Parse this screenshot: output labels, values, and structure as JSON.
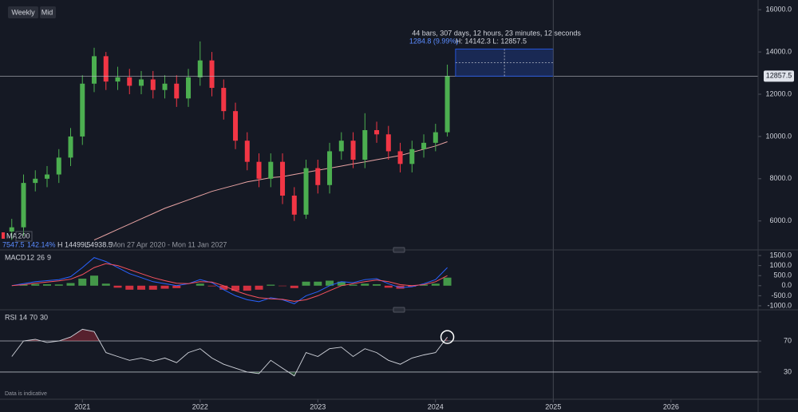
{
  "toolbar": {
    "interval": "Weekly",
    "price_source": "Mid"
  },
  "footer": "Data is indicative",
  "chart_data": [
    {
      "type": "candlestick",
      "xlim": [
        2020.3,
        2026.74
      ],
      "xticks": [
        2021,
        2022,
        2023,
        2024,
        2025,
        2026
      ],
      "ylim": [
        4630,
        16460
      ],
      "yticks": [
        {
          "value": 6000,
          "label": "6000.0"
        },
        {
          "value": 8000,
          "label": "8000.0"
        },
        {
          "value": 10000,
          "label": "10000.0"
        },
        {
          "value": 12000,
          "label": "12000.0"
        },
        {
          "value": 14000,
          "label": "14000.0"
        },
        {
          "value": 16000,
          "label": "16000.0"
        }
      ],
      "up_color": "#4caf50",
      "down_color": "#f23645",
      "x": [
        2020.4,
        2020.5,
        2020.6,
        2020.7,
        2020.8,
        2020.9,
        2021.0,
        2021.1,
        2021.2,
        2021.3,
        2021.4,
        2021.5,
        2021.6,
        2021.7,
        2021.8,
        2021.9,
        2022.0,
        2022.1,
        2022.2,
        2022.3,
        2022.4,
        2022.5,
        2022.6,
        2022.7,
        2022.8,
        2022.9,
        2023.0,
        2023.1,
        2023.2,
        2023.3,
        2023.4,
        2023.5,
        2023.6,
        2023.7,
        2023.8,
        2023.9,
        2024.0,
        2024.1
      ],
      "open": [
        5500,
        5700,
        7800,
        8000,
        8200,
        9000,
        10000,
        12500,
        13800,
        12600,
        12800,
        12400,
        12700,
        12200,
        12500,
        11800,
        12800,
        13600,
        12300,
        11200,
        9800,
        8800,
        8000,
        8800,
        7200,
        6300,
        8500,
        7700,
        9300,
        9800,
        8900,
        10300,
        10100,
        9300,
        8700,
        9400,
        9700,
        10200
      ],
      "high": [
        6100,
        8200,
        8400,
        8600,
        9400,
        10400,
        12900,
        14200,
        14000,
        13300,
        13200,
        13100,
        13100,
        12900,
        12900,
        13200,
        14500,
        14000,
        12700,
        11600,
        10200,
        9200,
        9200,
        9200,
        7600,
        8900,
        8900,
        9700,
        10200,
        10200,
        11100,
        10700,
        10500,
        9700,
        9800,
        10100,
        10600,
        13400
      ],
      "low": [
        5100,
        5300,
        7400,
        7600,
        7800,
        8600,
        9600,
        12100,
        12200,
        12200,
        12000,
        12000,
        11800,
        11800,
        11400,
        11400,
        12400,
        11900,
        10800,
        9400,
        8400,
        7600,
        7600,
        6800,
        6000,
        6100,
        7300,
        7300,
        8900,
        8500,
        8500,
        9700,
        8900,
        8300,
        8300,
        9000,
        9300,
        10000
      ],
      "close": [
        5700,
        7800,
        8000,
        8200,
        9000,
        10000,
        12500,
        13800,
        12600,
        12800,
        12400,
        12700,
        12200,
        12500,
        11800,
        12800,
        13600,
        12300,
        11200,
        9800,
        8800,
        8000,
        8800,
        7200,
        6300,
        8500,
        7700,
        9300,
        9800,
        8900,
        10300,
        10100,
        9300,
        8700,
        9400,
        9700,
        10200,
        12857.5
      ],
      "series": [
        {
          "name": "MA",
          "period": "200",
          "color": "#e8a3a3",
          "values": [
            null,
            null,
            null,
            null,
            null,
            null,
            null,
            5100,
            5350,
            5600,
            5850,
            6100,
            6350,
            6600,
            6800,
            7000,
            7200,
            7400,
            7550,
            7700,
            7850,
            7950,
            8050,
            8100,
            8200,
            8300,
            8400,
            8500,
            8600,
            8700,
            8800,
            8900,
            9000,
            9100,
            9250,
            9400,
            9550,
            9750
          ]
        }
      ],
      "legend_stats": [
        "7547.5",
        "142.14%",
        "H 14499.5",
        "L 4938.5",
        "Mon 27 Apr 2020 - Mon 11 Jan 2027"
      ],
      "last_price": 12857.5,
      "measure": {
        "x": [
          2024.17,
          2025.0
        ],
        "y": [
          12857.5,
          14142.3
        ],
        "summary": "44 bars, 307 days, 12 hours, 23 minutes, 12 seconds",
        "change": "1284.8 (9.99%)",
        "range": "H: 14142.3 L: 12857.5"
      }
    },
    {
      "type": "macd",
      "title": "MACD",
      "params": [
        "12",
        "26",
        "9"
      ],
      "ylim": [
        -1200,
        1700
      ],
      "yticks": [
        {
          "value": -1000,
          "label": "-1000.0"
        },
        {
          "value": -500,
          "label": "-500.0"
        },
        {
          "value": 0,
          "label": "0.0"
        },
        {
          "value": 500,
          "label": "500.0"
        },
        {
          "value": 1000,
          "label": "1000.0"
        },
        {
          "value": 1500,
          "label": "1500.0"
        }
      ],
      "up_color": "#4caf50",
      "down_color": "#f23645",
      "histogram": [
        0,
        50,
        80,
        70,
        60,
        130,
        350,
        500,
        100,
        -100,
        -200,
        -200,
        -200,
        -150,
        -120,
        0,
        100,
        -30,
        -200,
        -250,
        -250,
        -200,
        50,
        -20,
        -120,
        200,
        200,
        250,
        200,
        50,
        100,
        70,
        -100,
        -150,
        -50,
        50,
        100,
        400
      ],
      "series": [
        {
          "name": "MACD",
          "color": "#2962ff",
          "values": [
            0,
            100,
            200,
            250,
            300,
            450,
            900,
            1400,
            1200,
            900,
            600,
            400,
            200,
            100,
            0,
            100,
            300,
            150,
            -200,
            -500,
            -700,
            -800,
            -600,
            -700,
            -900,
            -500,
            -300,
            0,
            200,
            150,
            300,
            350,
            100,
            -100,
            -50,
            100,
            300,
            900
          ]
        },
        {
          "name": "Signal",
          "color": "#f7525f",
          "values": [
            0,
            50,
            120,
            180,
            240,
            320,
            550,
            900,
            1100,
            1000,
            800,
            600,
            400,
            250,
            120,
            100,
            200,
            180,
            0,
            -250,
            -450,
            -600,
            -650,
            -680,
            -780,
            -700,
            -500,
            -250,
            0,
            100,
            200,
            280,
            200,
            50,
            0,
            50,
            200,
            500
          ]
        }
      ]
    },
    {
      "type": "rsi",
      "title": "RSI",
      "params": [
        "14",
        "70",
        "30"
      ],
      "ylim": [
        -5,
        108
      ],
      "yticks": [
        30,
        70
      ],
      "overbought_color": "#f23645",
      "oversold_color": "#4caf50",
      "series": [
        {
          "name": "RSI",
          "color": "#d1d4dc",
          "values": [
            50,
            70,
            72,
            68,
            70,
            75,
            85,
            82,
            55,
            50,
            45,
            48,
            44,
            48,
            42,
            55,
            60,
            48,
            40,
            35,
            30,
            28,
            45,
            35,
            25,
            55,
            50,
            60,
            62,
            50,
            60,
            55,
            45,
            40,
            48,
            52,
            55,
            75
          ]
        }
      ]
    }
  ]
}
